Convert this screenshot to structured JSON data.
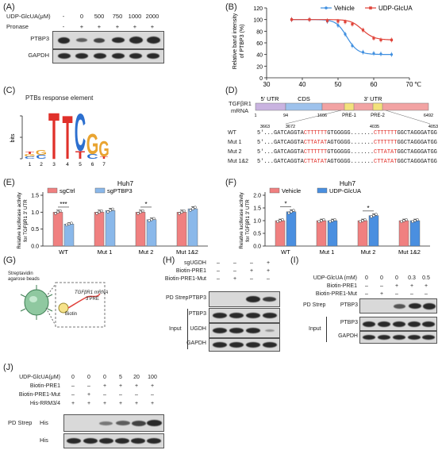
{
  "panel_labels": {
    "A": "(A)",
    "B": "(B)",
    "C": "(C)",
    "D": "(D)",
    "E": "(E)",
    "F": "(F)",
    "G": "(G)",
    "H": "(H)",
    "I": "(I)",
    "J": "(J)"
  },
  "a": {
    "row1_label": "UDP-GlcUA(μM)",
    "row2_label": "Pronase",
    "doses": [
      "-",
      "0",
      "500",
      "750",
      "1000",
      "2000"
    ],
    "pronase": [
      "-",
      "+",
      "+",
      "+",
      "+",
      "+"
    ],
    "blots": [
      "PTBP3",
      "GAPDH"
    ]
  },
  "b": {
    "legend": [
      "Vehicle",
      "UDP-GlcUA"
    ],
    "colors": {
      "vehicle": "#3f8fe0",
      "udp": "#e0443a"
    },
    "ylabel": "Relative band intensity of PTBP3 (%)",
    "xunit": "℃"
  },
  "c": {
    "title": "PTBs response element",
    "ylabel": "bits",
    "positions": [
      "1",
      "2",
      "3",
      "4",
      "5",
      "6",
      "7"
    ],
    "logo": [
      {
        "pos": "1",
        "letters": [
          "C",
          "G",
          "T"
        ]
      },
      {
        "pos": "2",
        "letters": [
          "C",
          "G"
        ]
      },
      {
        "pos": "3",
        "letters": [
          "T"
        ]
      },
      {
        "pos": "4",
        "letters": [
          "T"
        ]
      },
      {
        "pos": "5",
        "letters": [
          "T",
          "C"
        ]
      },
      {
        "pos": "6",
        "letters": [
          "C",
          "G"
        ]
      },
      {
        "pos": "7",
        "letters": [
          "T",
          "G"
        ]
      }
    ]
  },
  "d": {
    "gene": "TGFβR1",
    "mrna": "mRNA",
    "regions": [
      "5' UTR",
      "CDS",
      "3' UTR"
    ],
    "coords_top": [
      "1",
      "94",
      "1606",
      "6492"
    ],
    "pre": [
      "PRE-1",
      "PRE-2"
    ],
    "coords_seq": [
      "3663",
      "3672",
      "4035",
      "4053"
    ],
    "rows": [
      {
        "label": "WT",
        "seq": [
          [
            "5'...GATCAGGTA",
            0
          ],
          [
            "CTTTTTT",
            1
          ],
          [
            "GTGGGGG.......",
            0
          ],
          [
            "CTTTTTT",
            1
          ],
          [
            "GGCTAGGGATGG...3'",
            0
          ]
        ]
      },
      {
        "label": "Mut 1",
        "seq": [
          [
            "5'...GATCAGGTA",
            0
          ],
          [
            "CTTATAT",
            1
          ],
          [
            "AGTGGGG.......",
            0
          ],
          [
            "CTTTTTT",
            1
          ],
          [
            "GGCTAGGGATGG...3'",
            0
          ]
        ]
      },
      {
        "label": "Mut 2",
        "seq": [
          [
            "5'...GATCAGGTA",
            0
          ],
          [
            "CTTTTTT",
            1
          ],
          [
            "GTGGGGG.......",
            0
          ],
          [
            "CTTATAT",
            1
          ],
          [
            "GGCTAGGGATGG...3'",
            0
          ]
        ]
      },
      {
        "label": "Mut 1&2",
        "seq": [
          [
            "5'...GATCAGGTA",
            0
          ],
          [
            "CTTATAT",
            1
          ],
          [
            "AGTGGGG.......",
            0
          ],
          [
            "CTTATAT",
            1
          ],
          [
            "GGCTAGGGATGG...3'",
            0
          ]
        ]
      }
    ]
  },
  "e": {
    "title": "Huh7",
    "legend": [
      "sgCtrl",
      "sgPTBP3"
    ],
    "colors": {
      "a": "#f08080",
      "b": "#8ab8ea"
    },
    "ylabel": "Relative luciferase activity for TGFβR1 3' UTR",
    "categories": [
      "WT",
      "Mut 1",
      "Mut 2",
      "Mut 1&2"
    ],
    "sig": [
      "***",
      "*"
    ]
  },
  "f": {
    "title": "Huh7",
    "legend": [
      "Vehicle",
      "UDP-GlcUA"
    ],
    "colors": {
      "a": "#f08080",
      "b": "#4a8fe0"
    },
    "ylabel": "Relative luciferase activity for TGFβR1 3' UTR",
    "categories": [
      "WT",
      "Mut 1",
      "Mut 2",
      "Mut 1&2"
    ],
    "sig": [
      "*",
      "*"
    ]
  },
  "g": {
    "beads": "Streptavidin agarose beads",
    "mrna_label": "TGFβR1 mRNA",
    "pre_label": "3'PRE",
    "biotin": "Biotin"
  },
  "h": {
    "rows": [
      {
        "label": "sgUGDH",
        "vals": [
          "–",
          "–",
          "–",
          "+"
        ]
      },
      {
        "label": "Biotin-PRE1",
        "vals": [
          "–",
          "–",
          "+",
          "+"
        ]
      },
      {
        "label": "Biotin-PRE1-Mut",
        "vals": [
          "–",
          "+",
          "–",
          "–"
        ]
      }
    ],
    "pd": "PD Strep",
    "input": "Input",
    "blots": [
      "PTBP3",
      "PTBP3",
      "UGDH",
      "GAPDH"
    ]
  },
  "i": {
    "rows": [
      {
        "label": "UDP-GlcUA (mM)",
        "vals": [
          "0",
          "0",
          "0",
          "0.3",
          "0.5"
        ]
      },
      {
        "label": "Biotin-PRE1",
        "vals": [
          "–",
          "–",
          "+",
          "+",
          "+"
        ]
      },
      {
        "label": "Biotin-PRE1-Mut",
        "vals": [
          "–",
          "+",
          "–",
          "–",
          "–"
        ]
      }
    ],
    "pd": "PD Strep",
    "input": "Input",
    "blots": [
      "PTBP3",
      "PTBP3",
      "GAPDH"
    ]
  },
  "j": {
    "rows": [
      {
        "label": "UDP-GlcUA(μM)",
        "vals": [
          "0",
          "0",
          "0",
          "5",
          "20",
          "100"
        ]
      },
      {
        "label": "Biotin-PRE1",
        "vals": [
          "–",
          "–",
          "+",
          "+",
          "+",
          "+"
        ]
      },
      {
        "label": "Biotin-PRE1-Mut",
        "vals": [
          "–",
          "+",
          "–",
          "–",
          "–",
          "–"
        ]
      },
      {
        "label": "His-RRM3/4",
        "vals": [
          "+",
          "+",
          "+",
          "+",
          "+",
          "+"
        ]
      }
    ],
    "pd": "PD Strep",
    "blots": [
      "His",
      "His"
    ]
  },
  "chart_data": [
    {
      "type": "line",
      "panel": "B",
      "xlabel": "℃",
      "ylabel": "Relative band intensity of PTBP3 (%)",
      "xlim": [
        30,
        70
      ],
      "ylim": [
        0,
        120
      ],
      "xticks": [
        "30",
        "40",
        "50",
        "60",
        "70"
      ],
      "yticks": [
        "0",
        "20",
        "40",
        "60",
        "80",
        "100",
        "120"
      ],
      "legend_position": "top-right",
      "series": [
        {
          "name": "Vehicle",
          "x": [
            37,
            42,
            47,
            50,
            52,
            54,
            57,
            60,
            62,
            65
          ],
          "y": [
            100,
            100,
            97,
            90,
            75,
            55,
            44,
            42,
            41,
            40
          ]
        },
        {
          "name": "UDP-GlcUA",
          "x": [
            37,
            42,
            47,
            50,
            52,
            54,
            57,
            60,
            62,
            65
          ],
          "y": [
            100,
            100,
            98,
            97,
            96,
            92,
            82,
            68,
            65,
            65
          ]
        }
      ]
    },
    {
      "type": "bar",
      "panel": "E",
      "title": "Huh7",
      "categories": [
        "WT",
        "Mut 1",
        "Mut 2",
        "Mut 1&2"
      ],
      "ylabel": "Relative luciferase activity for TGFβR1 3' UTR",
      "ylim": [
        0,
        1.5
      ],
      "yticks": [
        "0.0",
        "0.5",
        "1.0",
        "1.5"
      ],
      "series": [
        {
          "name": "sgCtrl",
          "values": [
            1.0,
            1.0,
            1.0,
            1.0
          ]
        },
        {
          "name": "sgPTBP3",
          "values": [
            0.65,
            1.05,
            0.78,
            1.1
          ]
        }
      ]
    },
    {
      "type": "bar",
      "panel": "F",
      "title": "Huh7",
      "categories": [
        "WT",
        "Mut 1",
        "Mut 2",
        "Mut 1&2"
      ],
      "ylabel": "Relative luciferase activity for TGFβR1 3' UTR",
      "ylim": [
        0,
        2.0
      ],
      "yticks": [
        "0.0",
        "0.5",
        "1.0",
        "1.5",
        "2.0"
      ],
      "series": [
        {
          "name": "Vehicle",
          "values": [
            1.0,
            1.0,
            1.0,
            1.0
          ]
        },
        {
          "name": "UDP-GlcUA",
          "values": [
            1.35,
            1.0,
            1.2,
            1.0
          ]
        }
      ]
    }
  ]
}
